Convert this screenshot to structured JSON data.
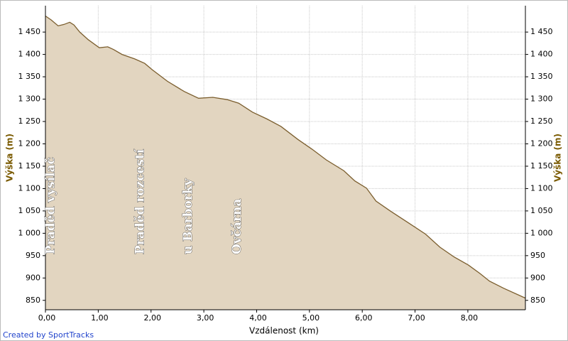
{
  "chart_data": {
    "type": "area",
    "y_label": "Výška (m)",
    "x_label": "Vzdálenost (km)",
    "credit": "Created by SportTracks",
    "x": [
      0,
      0.11,
      0.24,
      0.35,
      0.46,
      0.54,
      0.65,
      0.81,
      1.02,
      1.18,
      1.29,
      1.45,
      1.69,
      1.88,
      2.02,
      2.31,
      2.63,
      2.9,
      3.17,
      3.44,
      3.66,
      3.92,
      4.19,
      4.46,
      4.78,
      5.05,
      5.32,
      5.65,
      5.86,
      6.08,
      6.26,
      6.53,
      6.88,
      7.2,
      7.47,
      7.74,
      8.01,
      8.23,
      8.41,
      8.68,
      9.09
    ],
    "values": [
      1486,
      1477,
      1464,
      1467,
      1472,
      1466,
      1450,
      1433,
      1415,
      1417,
      1411,
      1400,
      1390,
      1380,
      1366,
      1340,
      1317,
      1302,
      1304,
      1299,
      1291,
      1271,
      1256,
      1239,
      1210,
      1188,
      1164,
      1140,
      1117,
      1101,
      1072,
      1050,
      1023,
      998,
      969,
      947,
      929,
      910,
      893,
      877,
      855
    ],
    "color": "#e2d5c0",
    "line_color": "#7b5e2e",
    "xlim": [
      0,
      9.09
    ],
    "ylim": [
      829,
      1509
    ],
    "xticks": [
      {
        "value": 0,
        "label": "0,00"
      },
      {
        "value": 1,
        "label": "1,00"
      },
      {
        "value": 2,
        "label": "2,00"
      },
      {
        "value": 3,
        "label": "3,00"
      },
      {
        "value": 4,
        "label": "4,00"
      },
      {
        "value": 5,
        "label": "5,00"
      },
      {
        "value": 6,
        "label": "6,00"
      },
      {
        "value": 7,
        "label": "7,00"
      },
      {
        "value": 8,
        "label": "8,00"
      }
    ],
    "yticks": [
      850,
      900,
      950,
      {
        "value": 1000,
        "label": "1 000"
      },
      {
        "value": 1050,
        "label": "1 050"
      },
      {
        "value": 1100,
        "label": "1 100"
      },
      {
        "value": 1150,
        "label": "1 150"
      },
      {
        "value": 1200,
        "label": "1 200"
      },
      {
        "value": 1250,
        "label": "1 250"
      },
      {
        "value": 1300,
        "label": "1 300"
      },
      {
        "value": 1350,
        "label": "1 350"
      },
      {
        "value": 1400,
        "label": "1 400"
      },
      {
        "value": 1450,
        "label": "1 450"
      }
    ],
    "grid": true,
    "annotations": [
      {
        "text": "Praděd vysílač",
        "x": 0.11
      },
      {
        "text": "Praděd rozcestí",
        "x": 1.8
      },
      {
        "text": "u Barborky",
        "x": 2.71
      },
      {
        "text": "Ovčárna",
        "x": 3.64
      }
    ]
  }
}
